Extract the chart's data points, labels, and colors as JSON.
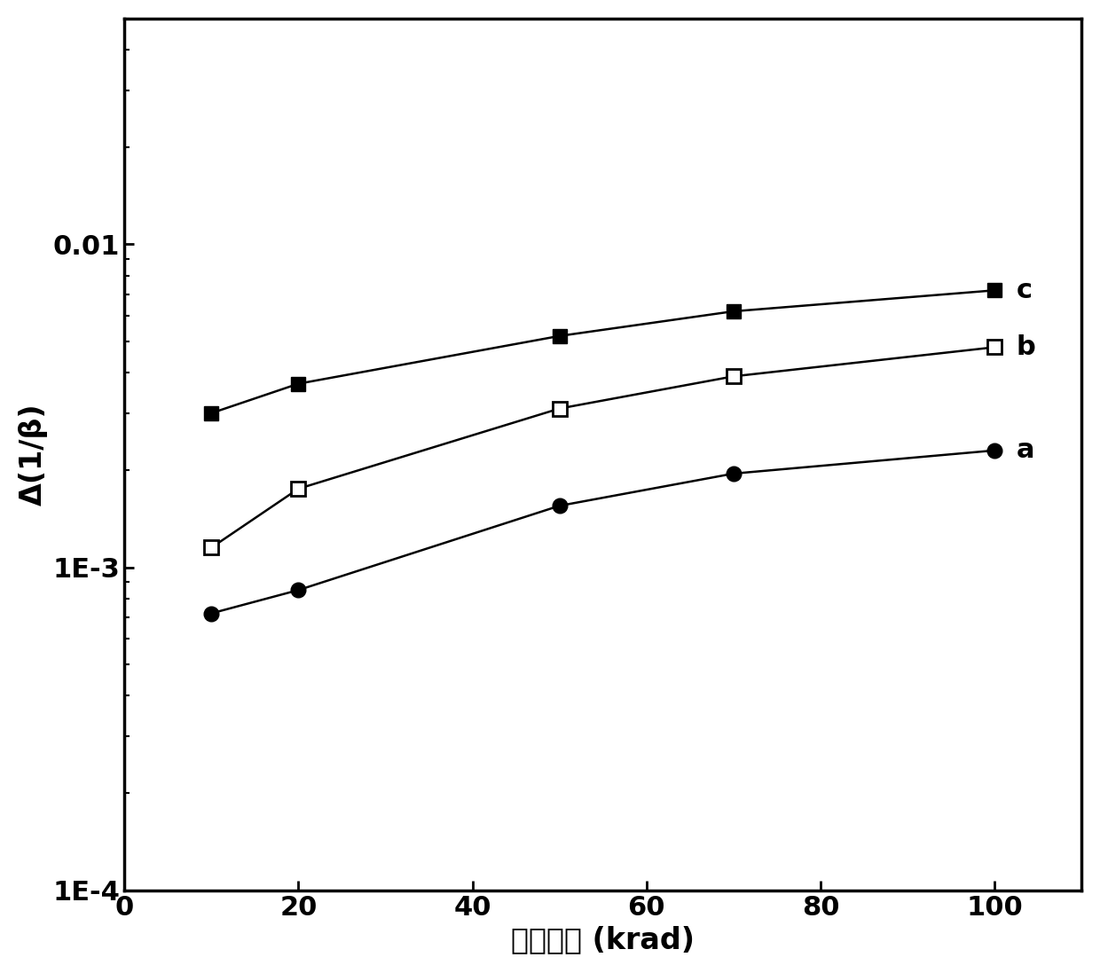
{
  "x": [
    10,
    20,
    50,
    70,
    100
  ],
  "series_a": {
    "y": [
      0.00072,
      0.00085,
      0.00155,
      0.00195,
      0.0023
    ],
    "label": "a"
  },
  "series_b": {
    "y": [
      0.00115,
      0.00175,
      0.0031,
      0.0039,
      0.0048
    ],
    "label": "b"
  },
  "series_c": {
    "y": [
      0.003,
      0.0037,
      0.0052,
      0.0062,
      0.0072
    ],
    "label": "c"
  },
  "xlabel": "吸收剂量 (krad)",
  "ylabel": "Δ(1/β)",
  "xlim": [
    0,
    110
  ],
  "ylim": [
    0.0001,
    0.05
  ],
  "xticks": [
    0,
    20,
    40,
    60,
    80,
    100
  ],
  "ytick_labels": [
    "1E-4",
    "1E-3",
    "0.01"
  ],
  "ytick_values": [
    0.0001,
    0.001,
    0.01
  ],
  "label_fontsize": 24,
  "tick_fontsize": 22,
  "annotation_fontsize": 22,
  "background_color": "#ffffff",
  "line_color": "#000000",
  "linewidth": 1.8,
  "markersize": 12
}
